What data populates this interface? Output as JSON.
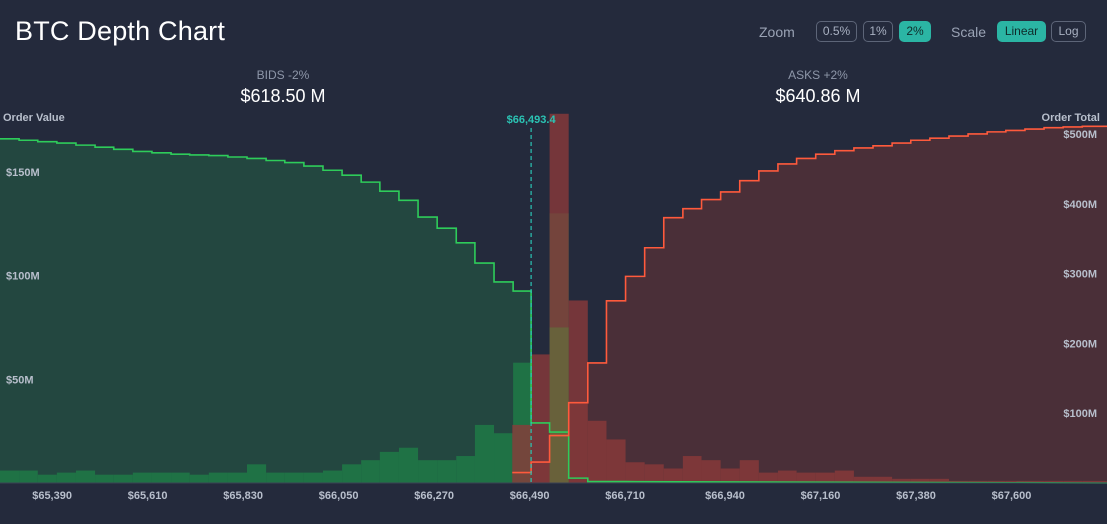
{
  "title": "BTC Depth Chart",
  "controls": {
    "zoom_label": "Zoom",
    "zoom_options": [
      "0.5%",
      "1%",
      "2%"
    ],
    "zoom_active": "2%",
    "scale_label": "Scale",
    "scale_options": [
      "Linear",
      "Log"
    ],
    "scale_active": "Linear"
  },
  "bids": {
    "label": "BIDS -2%",
    "value": "$618.50 M"
  },
  "asks": {
    "label": "ASKS +2%",
    "value": "$640.86 M"
  },
  "axes": {
    "left_title": "Order Value",
    "right_title": "Order Total"
  },
  "colors": {
    "bid": "#2ecc5a",
    "ask": "#ff5a3c",
    "mid": "#2bc4b4",
    "background": "#242a3c"
  },
  "chart_data": {
    "type": "area",
    "mid_price": 66493.4,
    "mid_price_label": "$66,493.4",
    "x_range": [
      65270,
      67820
    ],
    "x_ticks": [
      "$65,390",
      "$65,610",
      "$65,830",
      "$66,050",
      "$66,270",
      "$66,490",
      "$66,710",
      "$66,940",
      "$67,160",
      "$67,380",
      "$67,600"
    ],
    "x_tick_values": [
      65390,
      65610,
      65830,
      66050,
      66270,
      66490,
      66710,
      66940,
      67160,
      67380,
      67600
    ],
    "left_axis": {
      "title": "Order Value",
      "range": [
        0,
        175
      ],
      "ticks": [
        "$50M",
        "$100M",
        "$150M"
      ],
      "tick_values": [
        50,
        100,
        150
      ]
    },
    "right_axis": {
      "title": "Order Total",
      "range": [
        0,
        520
      ],
      "ticks": [
        "$100M",
        "$200M",
        "$300M",
        "$400M",
        "$500M"
      ],
      "tick_values": [
        100,
        200,
        300,
        400,
        500
      ]
    },
    "series": [
      {
        "side": "bids-cumulative",
        "axis": "right",
        "prices": [
          65270,
          65314,
          65357,
          65401,
          65445,
          65489,
          65532,
          65576,
          65620,
          65664,
          65707,
          65751,
          65795,
          65839,
          65883,
          65926,
          65970,
          66014,
          66058,
          66102,
          66145,
          66189,
          66233,
          66277,
          66321,
          66364,
          66408,
          66452,
          66493.4
        ],
        "values": [
          493,
          491,
          489,
          487,
          484,
          481,
          478,
          475,
          473,
          471,
          470,
          469,
          467,
          465,
          462,
          459,
          454,
          448,
          441,
          431,
          418,
          405,
          381,
          365,
          344,
          315,
          288,
          275,
          246
        ]
      },
      {
        "side": "bids-order-value",
        "axis": "left",
        "prices": [
          65270,
          65314,
          65357,
          65401,
          65445,
          65489,
          65532,
          65576,
          65620,
          65664,
          65707,
          65751,
          65795,
          65839,
          65883,
          65926,
          65970,
          66014,
          66058,
          66102,
          66145,
          66189,
          66233,
          66277,
          66321,
          66364,
          66408,
          66452,
          66493.4
        ],
        "values": [
          6,
          6,
          4,
          5,
          6,
          4,
          4,
          5,
          5,
          5,
          4,
          5,
          5,
          9,
          5,
          5,
          5,
          6,
          9,
          11,
          15,
          17,
          11,
          11,
          13,
          28,
          24,
          28,
          58
        ]
      },
      {
        "side": "bids-near-mid",
        "axis": "left",
        "prices": [
          66493.4,
          66536,
          66580
        ],
        "values": [
          130,
          75,
          44
        ]
      },
      {
        "side": "asks-cumulative",
        "axis": "right",
        "prices": [
          66450,
          66493.4,
          66536,
          66580,
          66624,
          66667,
          66711,
          66755,
          66799,
          66843,
          66886,
          66930,
          66974,
          67018,
          67062,
          67105,
          67149,
          67193,
          67237,
          67281,
          67325,
          67368,
          67412,
          67456,
          67500,
          67544,
          67587,
          67631,
          67675,
          67719,
          67763,
          67820
        ],
        "values": [
          15,
          30,
          68,
          115,
          172,
          261,
          296,
          337,
          380,
          393,
          406,
          417,
          433,
          447,
          457,
          465,
          471,
          476,
          480,
          483,
          487,
          491,
          494,
          497,
          500,
          503,
          505,
          507,
          509,
          510,
          511,
          512
        ]
      },
      {
        "side": "asks-order-value",
        "axis": "left",
        "prices": [
          66450,
          66493.4,
          66536,
          66580,
          66624,
          66667,
          66711,
          66755,
          66799,
          66843,
          66886,
          66930,
          66974,
          67018,
          67062,
          67105,
          67149,
          67193,
          67237,
          67281,
          67325,
          67368,
          67412,
          67456,
          67500,
          67544,
          67587,
          67631,
          67675,
          67719,
          67763,
          67820
        ],
        "values": [
          28,
          62,
          178,
          88,
          30,
          21,
          10,
          9,
          7,
          13,
          11,
          7,
          11,
          5,
          6,
          5,
          5,
          6,
          3,
          3,
          2,
          2,
          2,
          1,
          1,
          1,
          1,
          1,
          1,
          1,
          1,
          1
        ]
      }
    ]
  }
}
